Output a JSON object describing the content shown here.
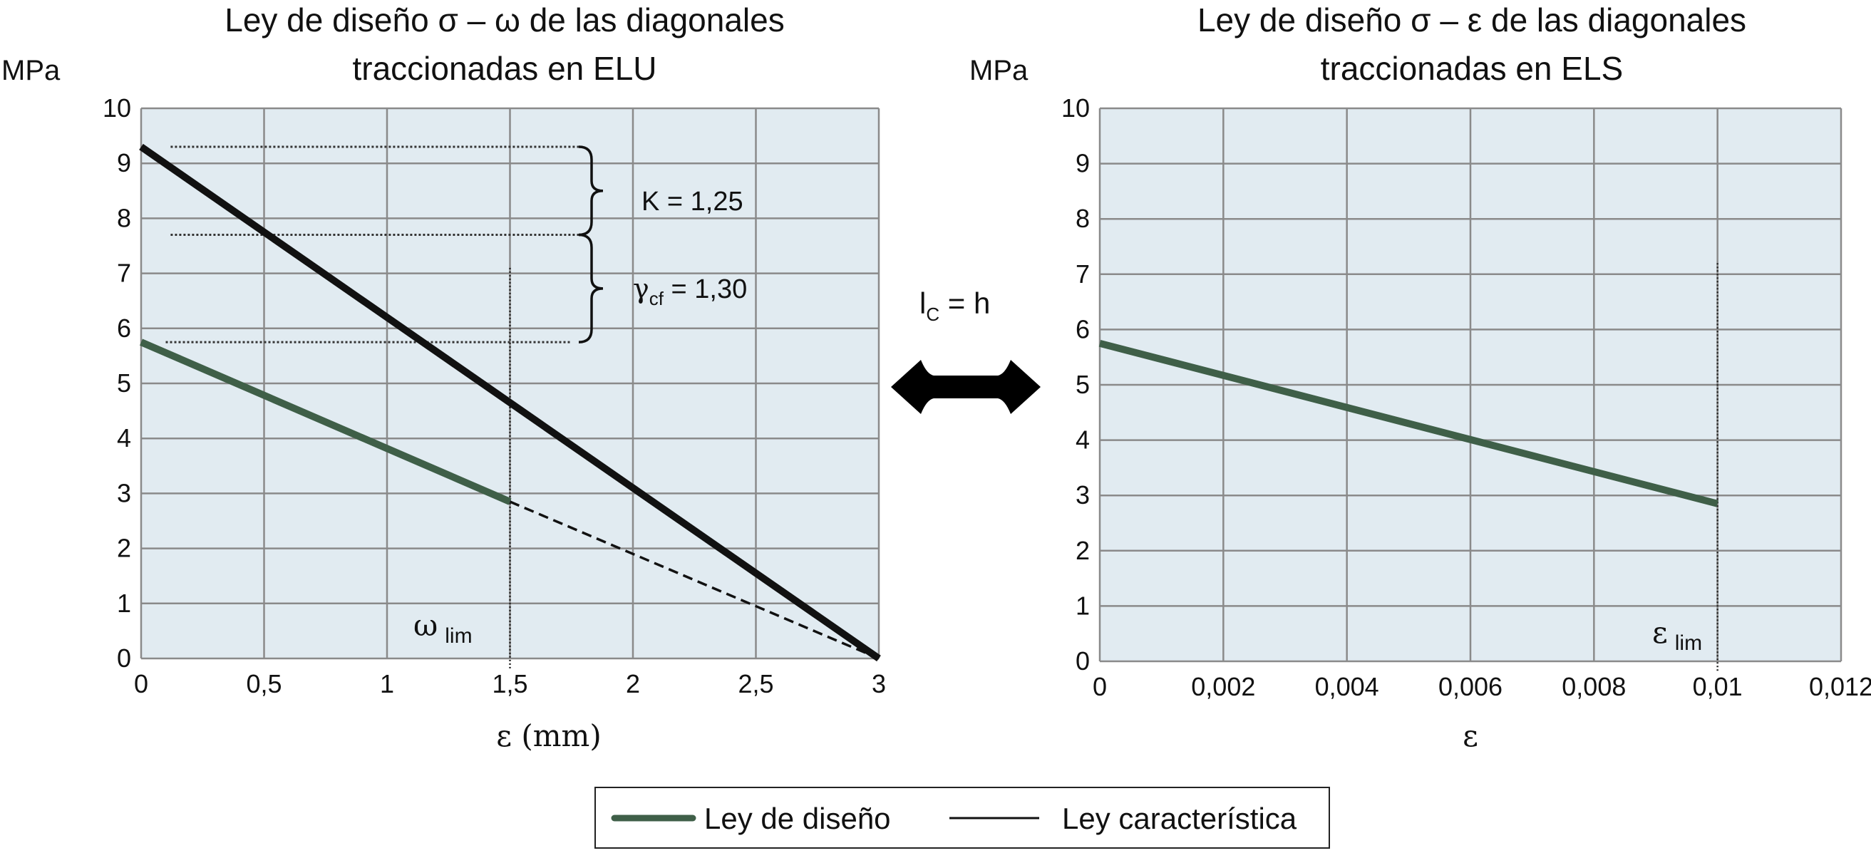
{
  "colors": {
    "plot_bg": "#e1ebf1",
    "grid": "#8a8a8a",
    "design_line": "#3f5f48",
    "characteristic_line": "#111111"
  },
  "chart_data": [
    {
      "type": "line",
      "title_line1": "Ley de diseño σ – ω de las diagonales",
      "title_line2": "traccionadas en ELU",
      "ylabel": "MPa",
      "xlabel": "ε (mm)",
      "xlim": [
        0,
        3
      ],
      "ylim": [
        0,
        10
      ],
      "x_ticks": [
        0,
        0.5,
        1,
        1.5,
        2,
        2.5,
        3
      ],
      "x_tick_labels": [
        "0",
        "0,5",
        "1",
        "1,5",
        "2",
        "2,5",
        "3"
      ],
      "y_ticks": [
        0,
        1,
        2,
        3,
        4,
        5,
        6,
        7,
        8,
        9,
        10
      ],
      "y_tick_labels": [
        "0",
        "1",
        "2",
        "3",
        "4",
        "5",
        "6",
        "7",
        "8",
        "9",
        "10"
      ],
      "grid": true,
      "series": [
        {
          "name": "Ley de diseño",
          "x": [
            0,
            1.5
          ],
          "y": [
            5.75,
            2.85
          ]
        },
        {
          "name": "Ley característica",
          "x": [
            0,
            3
          ],
          "y": [
            9.3,
            0
          ]
        },
        {
          "x": [
            1.5,
            3
          ],
          "y": [
            2.85,
            0
          ]
        }
      ],
      "limit_line": {
        "x": 1.5,
        "y_top": 7.1,
        "label_symbol": "ω",
        "label_sub": "lim"
      },
      "reference_lines": [
        {
          "y": 9.3,
          "x_from": 0.12,
          "x_to": 1.78
        },
        {
          "y": 7.7,
          "x_from": 0.12,
          "x_to": 1.78
        },
        {
          "y": 5.75,
          "x_from": 0.1,
          "x_to": 1.75
        }
      ],
      "annotations": {
        "k_text": "K = 1,25",
        "gamma_symbol": "γ",
        "gamma_sub": "cf",
        "gamma_value": " = 1,30"
      }
    },
    {
      "type": "line",
      "title_line1": "Ley de diseño σ – ε de las diagonales",
      "title_line2": "traccionadas en ELS",
      "ylabel": "MPa",
      "xlabel": "ε",
      "xlim": [
        0,
        0.012
      ],
      "ylim": [
        0,
        10
      ],
      "x_ticks": [
        0,
        0.002,
        0.004,
        0.006,
        0.008,
        0.01,
        0.012
      ],
      "x_tick_labels": [
        "0",
        "0,002",
        "0,004",
        "0,006",
        "0,008",
        "0,01",
        "0,012"
      ],
      "y_ticks": [
        0,
        1,
        2,
        3,
        4,
        5,
        6,
        7,
        8,
        9,
        10
      ],
      "y_tick_labels": [
        "0",
        "1",
        "2",
        "3",
        "4",
        "5",
        "6",
        "7",
        "8",
        "9",
        "10"
      ],
      "grid": true,
      "series": [
        {
          "name": "Ley de diseño",
          "x": [
            0,
            0.01
          ],
          "y": [
            5.75,
            2.85
          ]
        }
      ],
      "limit_line": {
        "x": 0.01,
        "y_top": 7.2,
        "label_symbol": "ε",
        "label_sub": "lim"
      }
    }
  ],
  "connector": {
    "label_main": "l",
    "label_sub": "C",
    "label_rest": " = h"
  },
  "legend": {
    "items": [
      {
        "label": "Ley de diseño"
      },
      {
        "label": "Ley característica"
      }
    ]
  }
}
